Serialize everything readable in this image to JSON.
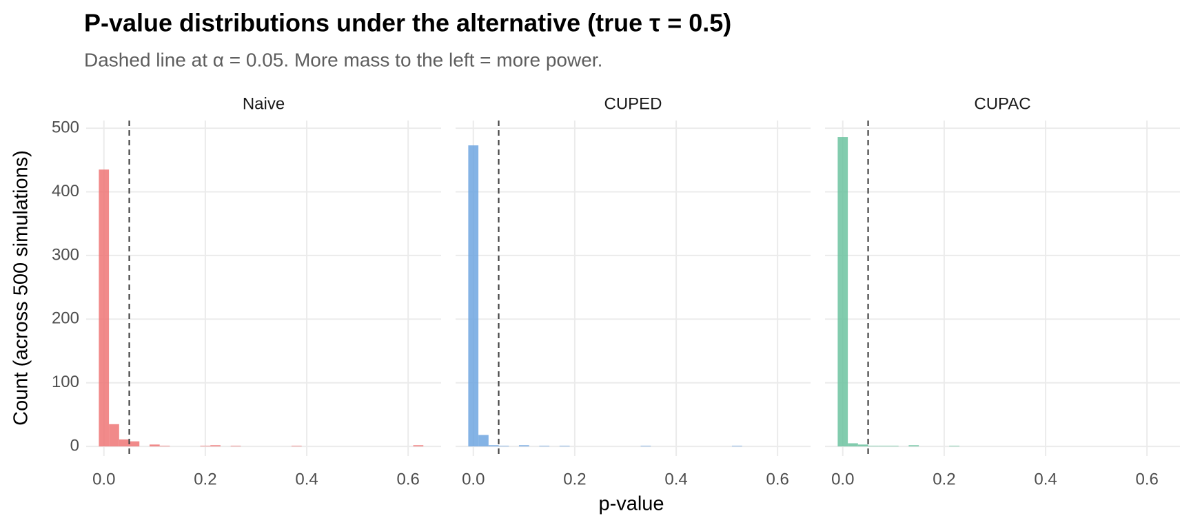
{
  "chart_data": {
    "type": "histogram",
    "title": "P-value distributions under the alternative (true τ = 0.5)",
    "subtitle": "Dashed line at α = 0.05. More mass to the left = more power.",
    "x_label": "p-value",
    "y_label": "Count (across 500 simulations)",
    "bins": [
      -0.01,
      0.01,
      0.03,
      0.05,
      0.07,
      0.09,
      0.11,
      0.13,
      0.15,
      0.17,
      0.19,
      0.21,
      0.23,
      0.25,
      0.27,
      0.29,
      0.31,
      0.33,
      0.35,
      0.37,
      0.39,
      0.41,
      0.43,
      0.45,
      0.47,
      0.49,
      0.51,
      0.53,
      0.55,
      0.57,
      0.59,
      0.61,
      0.63,
      0.65
    ],
    "series": [
      {
        "name": "Naive",
        "color": "#ee7676",
        "values": [
          435,
          35,
          11,
          8,
          0,
          3,
          1,
          0,
          0,
          0,
          1,
          2,
          0,
          1,
          0,
          0,
          0,
          0,
          0,
          1,
          0,
          0,
          0,
          0,
          0,
          0,
          0,
          0,
          0,
          0,
          0,
          2,
          0
        ]
      },
      {
        "name": "CUPED",
        "color": "#6fa6e0",
        "values": [
          473,
          18,
          2,
          1,
          0,
          2,
          0,
          1,
          0,
          1,
          0,
          0,
          0,
          0,
          0,
          0,
          0,
          1,
          0,
          0,
          0,
          0,
          0,
          0,
          0,
          0,
          1,
          0,
          0,
          0,
          0,
          0,
          0
        ]
      },
      {
        "name": "CUPAC",
        "color": "#6cc3a0",
        "values": [
          486,
          5,
          3,
          1,
          1,
          1,
          0,
          2,
          0,
          0,
          0,
          1,
          0,
          0,
          0,
          0,
          0,
          0,
          0,
          0,
          0,
          0,
          0,
          0,
          0,
          0,
          0,
          0,
          0,
          0,
          0,
          0,
          0
        ]
      }
    ],
    "vline": 0.05,
    "xlim": [
      -0.035,
      0.665
    ],
    "ylim": [
      -15,
      512
    ],
    "xticks": [
      {
        "value": 0,
        "label": "0.0"
      },
      0.2,
      0.4,
      0.6
    ],
    "yticks": [
      0,
      100,
      200,
      300,
      400,
      500
    ],
    "grid": true
  }
}
